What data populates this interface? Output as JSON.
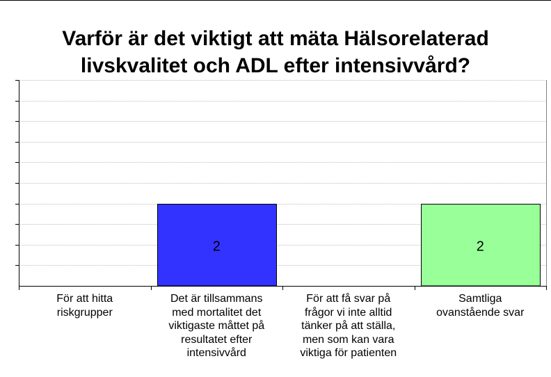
{
  "chart_data": {
    "type": "bar",
    "title_lines": [
      "Varför är det viktigt att mäta Hälsorelaterad",
      "livskvalitet och ADL efter intensivvård?"
    ],
    "categories": [
      [
        "För att hitta",
        "riskgrupper"
      ],
      [
        "Det är tillsammans",
        "med mortalitet det",
        "viktigaste måttet på",
        "resultatet efter",
        "intensivvård"
      ],
      [
        "För att få svar på",
        "frågor vi inte alltid",
        "tänker på att ställa,",
        "men som kan vara",
        "viktiga för patienten"
      ],
      [
        "Samtliga",
        "ovanstående svar"
      ]
    ],
    "values": [
      0,
      2,
      0,
      2
    ],
    "data_labels": [
      "",
      "2",
      "",
      "2"
    ],
    "bar_colors": [
      "#3333ff",
      "#3333ff",
      "#99ff99",
      "#99ff99"
    ],
    "ylim": [
      0,
      5
    ],
    "grid": true,
    "ytick_step": 0.5,
    "legend": "none",
    "xlabel": "",
    "ylabel": ""
  }
}
